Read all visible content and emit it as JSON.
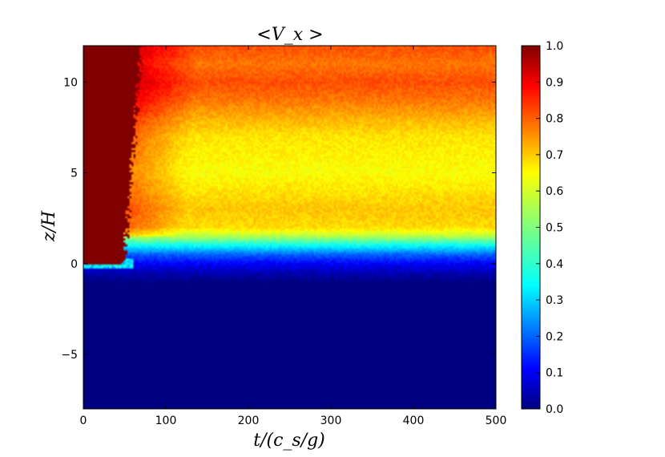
{
  "chart_data": {
    "type": "heatmap",
    "title": "<V_x >",
    "xlabel": "t/(c_s/g)",
    "ylabel": "z/H",
    "xlim": [
      0,
      500
    ],
    "ylim": [
      -8,
      12
    ],
    "xticks": [
      0,
      100,
      200,
      300,
      400,
      500
    ],
    "yticks": [
      -5,
      0,
      5,
      10
    ],
    "ytick_labels": [
      "−5",
      "0",
      "5",
      "10"
    ],
    "colorbar": {
      "colormap": "jet",
      "range": [
        0.0,
        1.0
      ],
      "ticks": [
        0.0,
        0.1,
        0.2,
        0.3,
        0.4,
        0.5,
        0.6,
        0.7,
        0.8,
        0.9,
        1.0
      ],
      "tick_labels": [
        "0.0",
        "0.1",
        "0.2",
        "0.3",
        "0.4",
        "0.5",
        "0.6",
        "0.7",
        "0.8",
        "0.9",
        "1.0"
      ]
    },
    "z_profile_late_time": {
      "z": [
        -8,
        -1.0,
        -0.5,
        0.0,
        0.5,
        1.0,
        1.5,
        2.0,
        3.0,
        5.0,
        7.0,
        8.0,
        9.0,
        10.0,
        11.0,
        12.0
      ],
      "value": [
        0.0,
        0.0,
        0.05,
        0.12,
        0.22,
        0.38,
        0.55,
        0.66,
        0.68,
        0.62,
        0.65,
        0.7,
        0.76,
        0.8,
        0.76,
        0.8
      ]
    },
    "early_saturated_region": {
      "value": 1.0,
      "t_end_at_z0": 50,
      "t_end_at_z12": 70
    }
  }
}
